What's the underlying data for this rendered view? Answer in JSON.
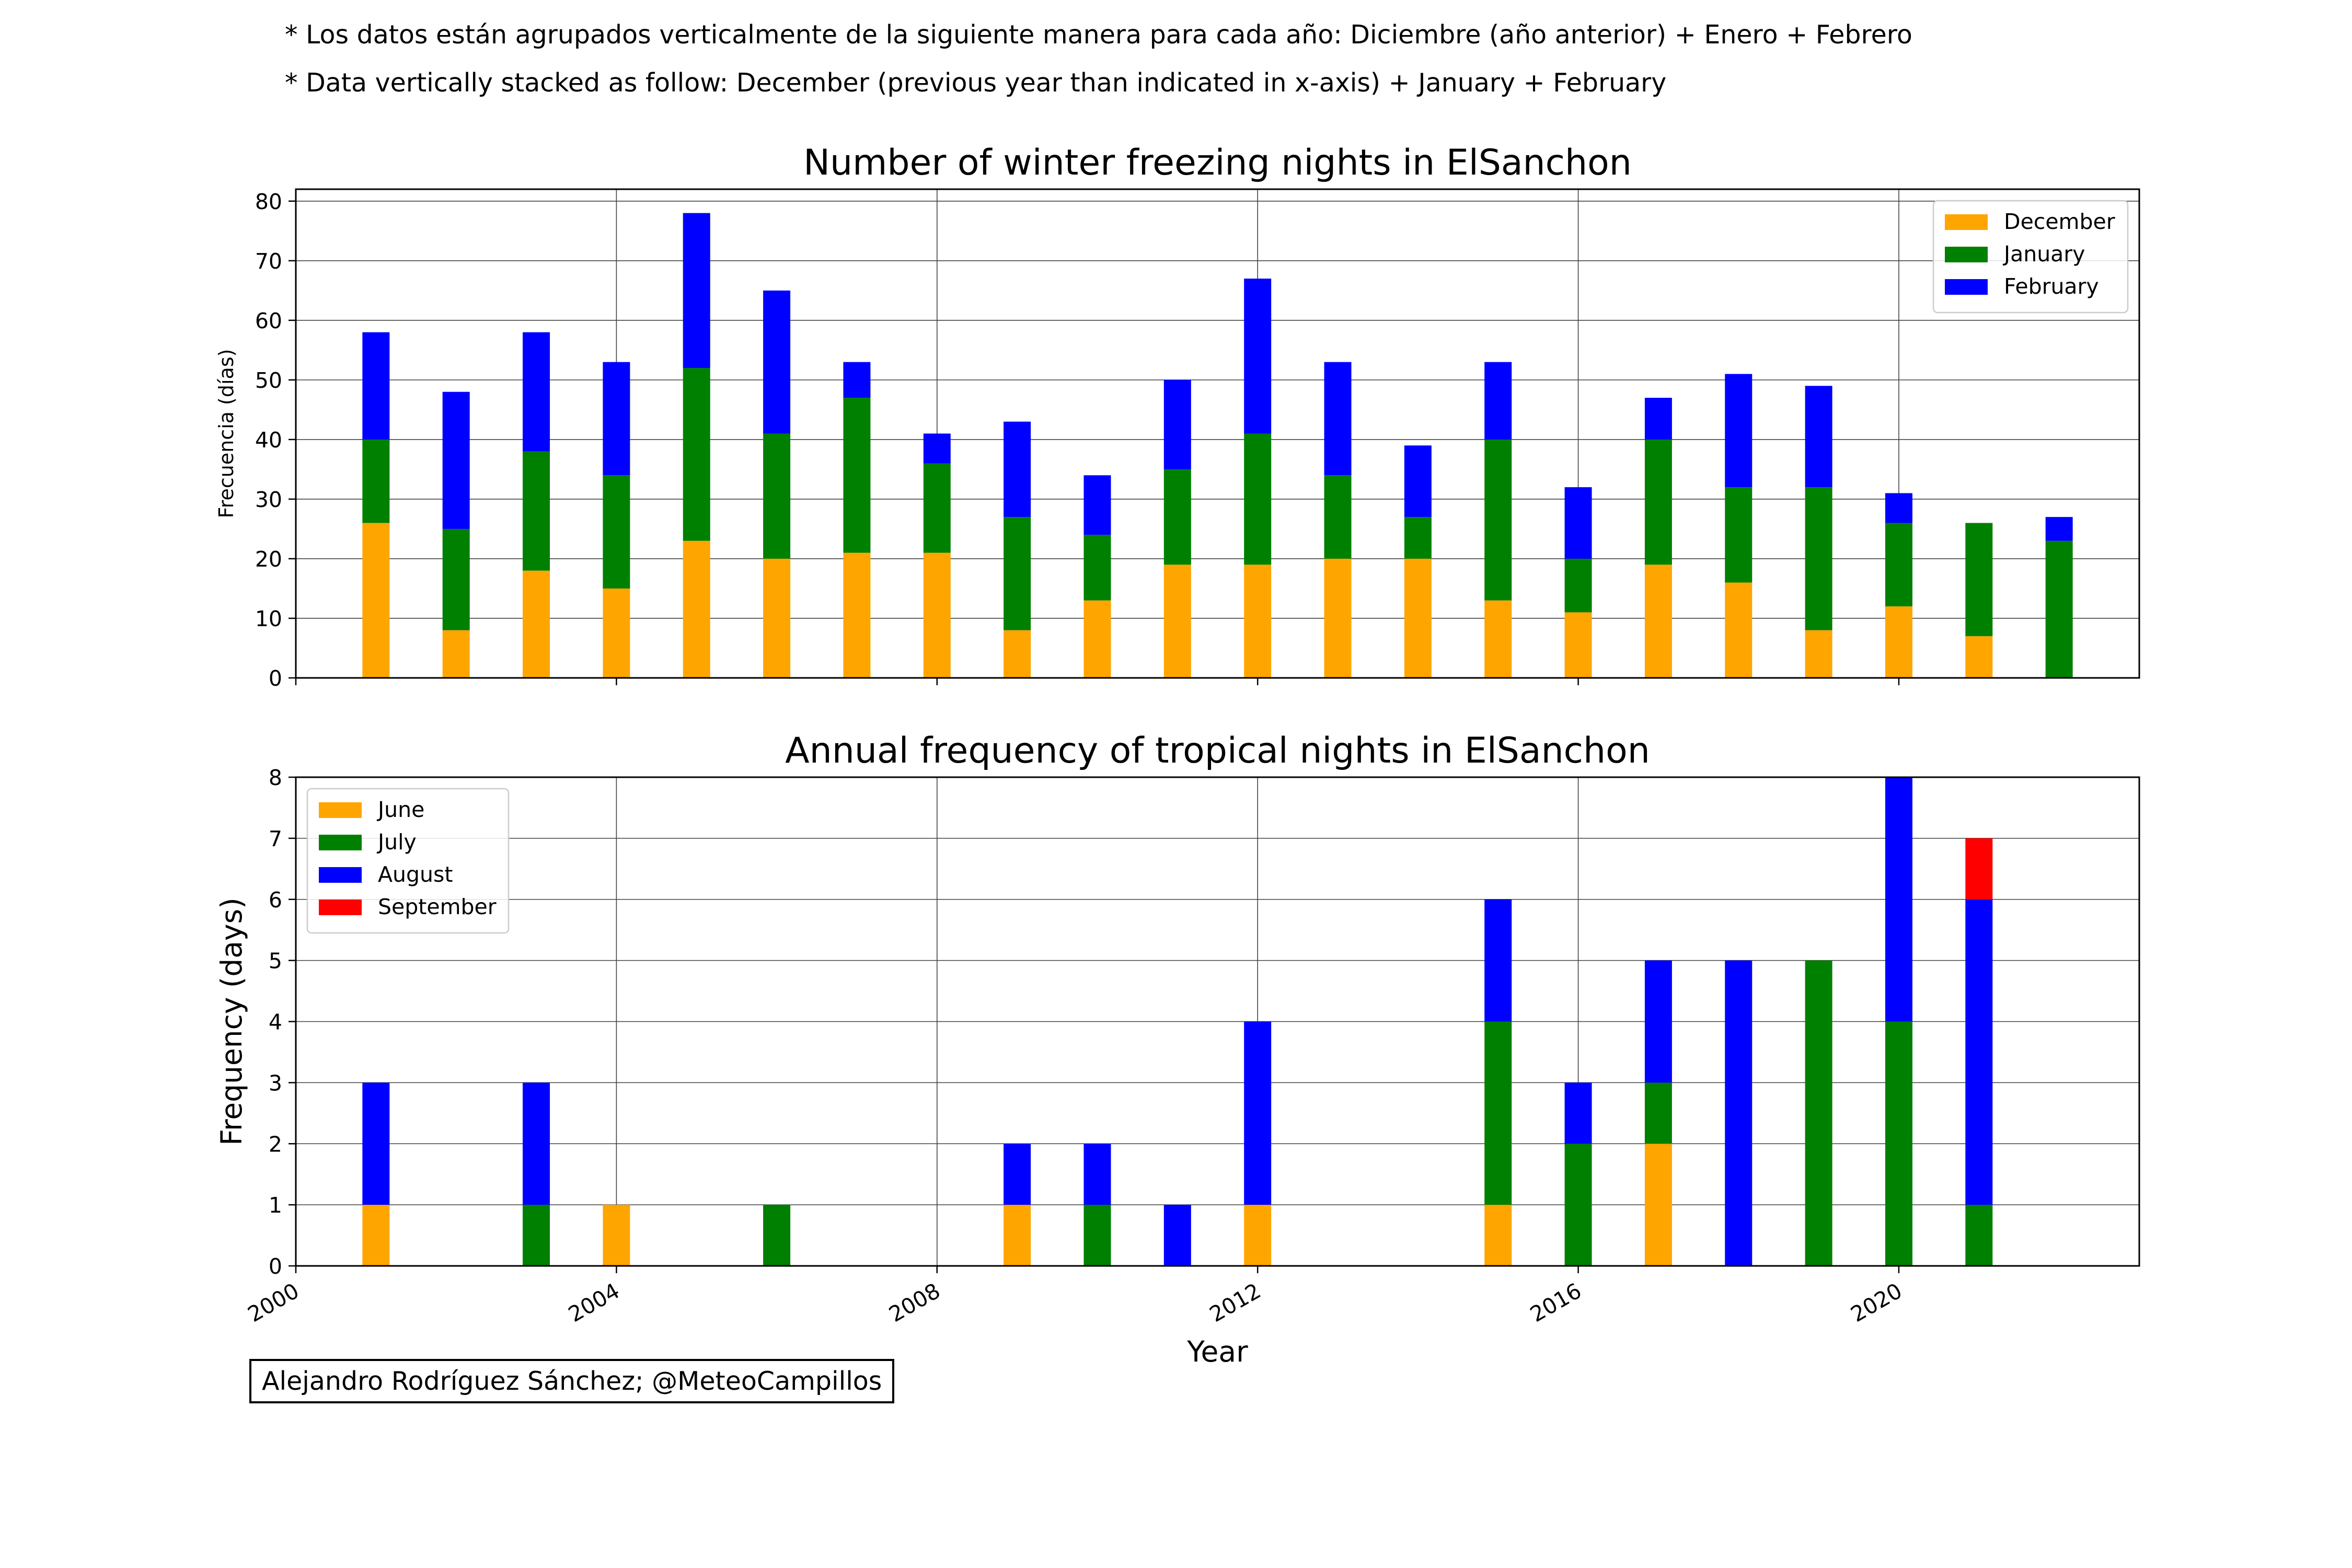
{
  "notes": {
    "spanish": "* Los datos están agrupados verticalmente de la siguiente manera para cada año: Diciembre (año anterior) + Enero  + Febrero",
    "english": "* Data vertically stacked as follow: December (previous year than indicated in x-axis) + January  + February"
  },
  "credit": "Alejandro Rodríguez Sánchez; @MeteoCampillos",
  "chart_data": [
    {
      "type": "bar",
      "stacked": true,
      "title": "Number of winter freezing nights in ElSanchon",
      "xlabel": "",
      "ylabel": "Frecuencia (días)",
      "xlim": [
        2000,
        2023
      ],
      "ylim": [
        0,
        82
      ],
      "yticks": [
        0,
        10,
        20,
        30,
        40,
        50,
        60,
        70,
        80
      ],
      "xticks": [
        2000,
        2004,
        2008,
        2012,
        2016,
        2020
      ],
      "xtick_labels_visible": false,
      "grid": true,
      "legend": "top-right",
      "x": [
        2001,
        2002,
        2003,
        2004,
        2005,
        2006,
        2007,
        2008,
        2009,
        2010,
        2011,
        2012,
        2013,
        2014,
        2015,
        2016,
        2017,
        2018,
        2019,
        2020,
        2021,
        2022
      ],
      "series": [
        {
          "name": "December",
          "color": "#ffa500",
          "values": [
            26,
            8,
            18,
            15,
            23,
            20,
            21,
            21,
            8,
            13,
            19,
            19,
            20,
            20,
            13,
            11,
            19,
            16,
            8,
            12,
            7,
            0
          ]
        },
        {
          "name": "January",
          "color": "#008000",
          "values": [
            14,
            17,
            20,
            19,
            29,
            21,
            26,
            15,
            19,
            11,
            16,
            22,
            14,
            7,
            27,
            9,
            21,
            16,
            24,
            14,
            19,
            23
          ]
        },
        {
          "name": "February",
          "color": "#0000ff",
          "values": [
            18,
            23,
            20,
            19,
            26,
            24,
            6,
            5,
            16,
            10,
            15,
            26,
            19,
            12,
            13,
            12,
            7,
            19,
            17,
            5,
            0,
            4
          ]
        }
      ]
    },
    {
      "type": "bar",
      "stacked": true,
      "title": "Annual frequency of tropical nights in ElSanchon",
      "xlabel": "Year",
      "ylabel": "Frequency (days)",
      "xlim": [
        2000,
        2023
      ],
      "ylim": [
        0,
        8
      ],
      "yticks": [
        0,
        1,
        2,
        3,
        4,
        5,
        6,
        7,
        8
      ],
      "xticks": [
        2000,
        2004,
        2008,
        2012,
        2016,
        2020
      ],
      "xtick_labels": [
        "2000",
        "2004",
        "2008",
        "2012",
        "2016",
        "2020"
      ],
      "grid": true,
      "legend": "top-left",
      "x": [
        2001,
        2002,
        2003,
        2004,
        2005,
        2006,
        2007,
        2008,
        2009,
        2010,
        2011,
        2012,
        2013,
        2014,
        2015,
        2016,
        2017,
        2018,
        2019,
        2020,
        2021,
        2022
      ],
      "series": [
        {
          "name": "June",
          "color": "#ffa500",
          "values": [
            1,
            0,
            0,
            1,
            0,
            0,
            0,
            0,
            1,
            0,
            0,
            1,
            0,
            0,
            1,
            0,
            2,
            0,
            0,
            0,
            0,
            0
          ]
        },
        {
          "name": "July",
          "color": "#008000",
          "values": [
            0,
            0,
            1,
            0,
            0,
            1,
            0,
            0,
            0,
            1,
            0,
            0,
            0,
            0,
            3,
            2,
            1,
            0,
            5,
            4,
            1,
            0
          ]
        },
        {
          "name": "August",
          "color": "#0000ff",
          "values": [
            2,
            0,
            2,
            0,
            0,
            0,
            0,
            0,
            1,
            1,
            1,
            3,
            0,
            0,
            2,
            1,
            2,
            5,
            0,
            4,
            5,
            0
          ]
        },
        {
          "name": "September",
          "color": "#ff0000",
          "values": [
            0,
            0,
            0,
            0,
            0,
            0,
            0,
            0,
            0,
            0,
            0,
            0,
            0,
            0,
            0,
            0,
            0,
            0,
            0,
            0,
            1,
            0
          ]
        }
      ]
    }
  ]
}
